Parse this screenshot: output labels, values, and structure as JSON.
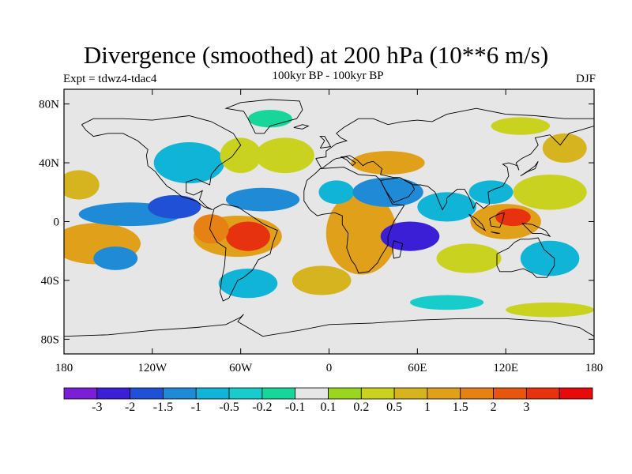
{
  "title": "Divergence (smoothed) at 200 hPa (10**6 m/s)",
  "experiment": "Expt = tdwz4-tdac4",
  "period": "100kyr BP - 100kyr BP",
  "season": "DJF",
  "map": {
    "lon_range": [
      -180,
      180
    ],
    "lat_range": [
      -90,
      90
    ],
    "land_color": "#e6e6e6",
    "lat_ticks": [
      {
        "value": 80,
        "label": "80N"
      },
      {
        "value": 40,
        "label": "40N"
      },
      {
        "value": 0,
        "label": "0"
      },
      {
        "value": -40,
        "label": "40S"
      },
      {
        "value": -80,
        "label": "80S"
      }
    ],
    "lon_ticks": [
      {
        "value": -180,
        "label": "180"
      },
      {
        "value": -120,
        "label": "120W"
      },
      {
        "value": -60,
        "label": "60W"
      },
      {
        "value": 0,
        "label": "0"
      },
      {
        "value": 60,
        "label": "60E"
      },
      {
        "value": 120,
        "label": "120E"
      },
      {
        "value": 180,
        "label": "180"
      }
    ]
  },
  "colorbar": {
    "colors": [
      "#7a1fd6",
      "#3a1fd6",
      "#1f50d6",
      "#1f8ad6",
      "#0fb4d6",
      "#18cccc",
      "#18d69a",
      "#e6e6e6",
      "#9ad61f",
      "#c8d21f",
      "#d6b41f",
      "#e0a01a",
      "#e68214",
      "#e6560f",
      "#e6320f",
      "#e60a0a"
    ],
    "labels": [
      "-3",
      "-2",
      "-1.5",
      "-1",
      "-0.5",
      "-0.2",
      "-0.1",
      "0.1",
      "0.2",
      "0.5",
      "1",
      "1.5",
      "2",
      "3"
    ]
  },
  "regions": [
    {
      "lon": -150,
      "lat": -15,
      "rx": 22,
      "ry": 8,
      "level": 14
    },
    {
      "lon": -158,
      "lat": -15,
      "rx": 30,
      "ry": 14,
      "level": 11
    },
    {
      "lon": -145,
      "lat": -25,
      "rx": 15,
      "ry": 8,
      "level": 3
    },
    {
      "lon": -135,
      "lat": 5,
      "rx": 35,
      "ry": 8,
      "level": 3
    },
    {
      "lon": -105,
      "lat": 10,
      "rx": 18,
      "ry": 8,
      "level": 2
    },
    {
      "lon": -170,
      "lat": 25,
      "rx": 14,
      "ry": 10,
      "level": 10
    },
    {
      "lon": -95,
      "lat": 40,
      "rx": 24,
      "ry": 14,
      "level": 4
    },
    {
      "lon": -60,
      "lat": 45,
      "rx": 14,
      "ry": 12,
      "level": 9
    },
    {
      "lon": -62,
      "lat": -10,
      "rx": 30,
      "ry": 14,
      "level": 11
    },
    {
      "lon": -55,
      "lat": -10,
      "rx": 15,
      "ry": 10,
      "level": 14
    },
    {
      "lon": -80,
      "lat": -5,
      "rx": 12,
      "ry": 10,
      "level": 12
    },
    {
      "lon": -45,
      "lat": 15,
      "rx": 25,
      "ry": 8,
      "level": 3
    },
    {
      "lon": -30,
      "lat": 45,
      "rx": 20,
      "ry": 12,
      "level": 9
    },
    {
      "lon": -55,
      "lat": -42,
      "rx": 20,
      "ry": 10,
      "level": 4
    },
    {
      "lon": -5,
      "lat": -40,
      "rx": 20,
      "ry": 10,
      "level": 10
    },
    {
      "lon": 20,
      "lat": -5,
      "rx": 15,
      "ry": 20,
      "level": 14
    },
    {
      "lon": 22,
      "lat": -8,
      "rx": 24,
      "ry": 28,
      "level": 11
    },
    {
      "lon": 5,
      "lat": 20,
      "rx": 12,
      "ry": 8,
      "level": 4
    },
    {
      "lon": 40,
      "lat": 20,
      "rx": 24,
      "ry": 10,
      "level": 3
    },
    {
      "lon": 40,
      "lat": 40,
      "rx": 25,
      "ry": 8,
      "level": 11
    },
    {
      "lon": 55,
      "lat": -10,
      "rx": 20,
      "ry": 10,
      "level": 1
    },
    {
      "lon": 80,
      "lat": 10,
      "rx": 20,
      "ry": 10,
      "level": 4
    },
    {
      "lon": 95,
      "lat": -25,
      "rx": 22,
      "ry": 10,
      "level": 9
    },
    {
      "lon": 120,
      "lat": 0,
      "rx": 24,
      "ry": 12,
      "level": 11
    },
    {
      "lon": 125,
      "lat": 3,
      "rx": 12,
      "ry": 6,
      "level": 14
    },
    {
      "lon": 110,
      "lat": 20,
      "rx": 15,
      "ry": 8,
      "level": 4
    },
    {
      "lon": 150,
      "lat": 20,
      "rx": 25,
      "ry": 12,
      "level": 9
    },
    {
      "lon": 150,
      "lat": -25,
      "rx": 20,
      "ry": 12,
      "level": 4
    },
    {
      "lon": 160,
      "lat": 50,
      "rx": 15,
      "ry": 10,
      "level": 10
    },
    {
      "lon": 130,
      "lat": 65,
      "rx": 20,
      "ry": 6,
      "level": 9
    },
    {
      "lon": -40,
      "lat": 70,
      "rx": 15,
      "ry": 6,
      "level": 6
    },
    {
      "lon": 150,
      "lat": -60,
      "rx": 30,
      "ry": 5,
      "level": 9
    },
    {
      "lon": 80,
      "lat": -55,
      "rx": 25,
      "ry": 5,
      "level": 5
    }
  ]
}
